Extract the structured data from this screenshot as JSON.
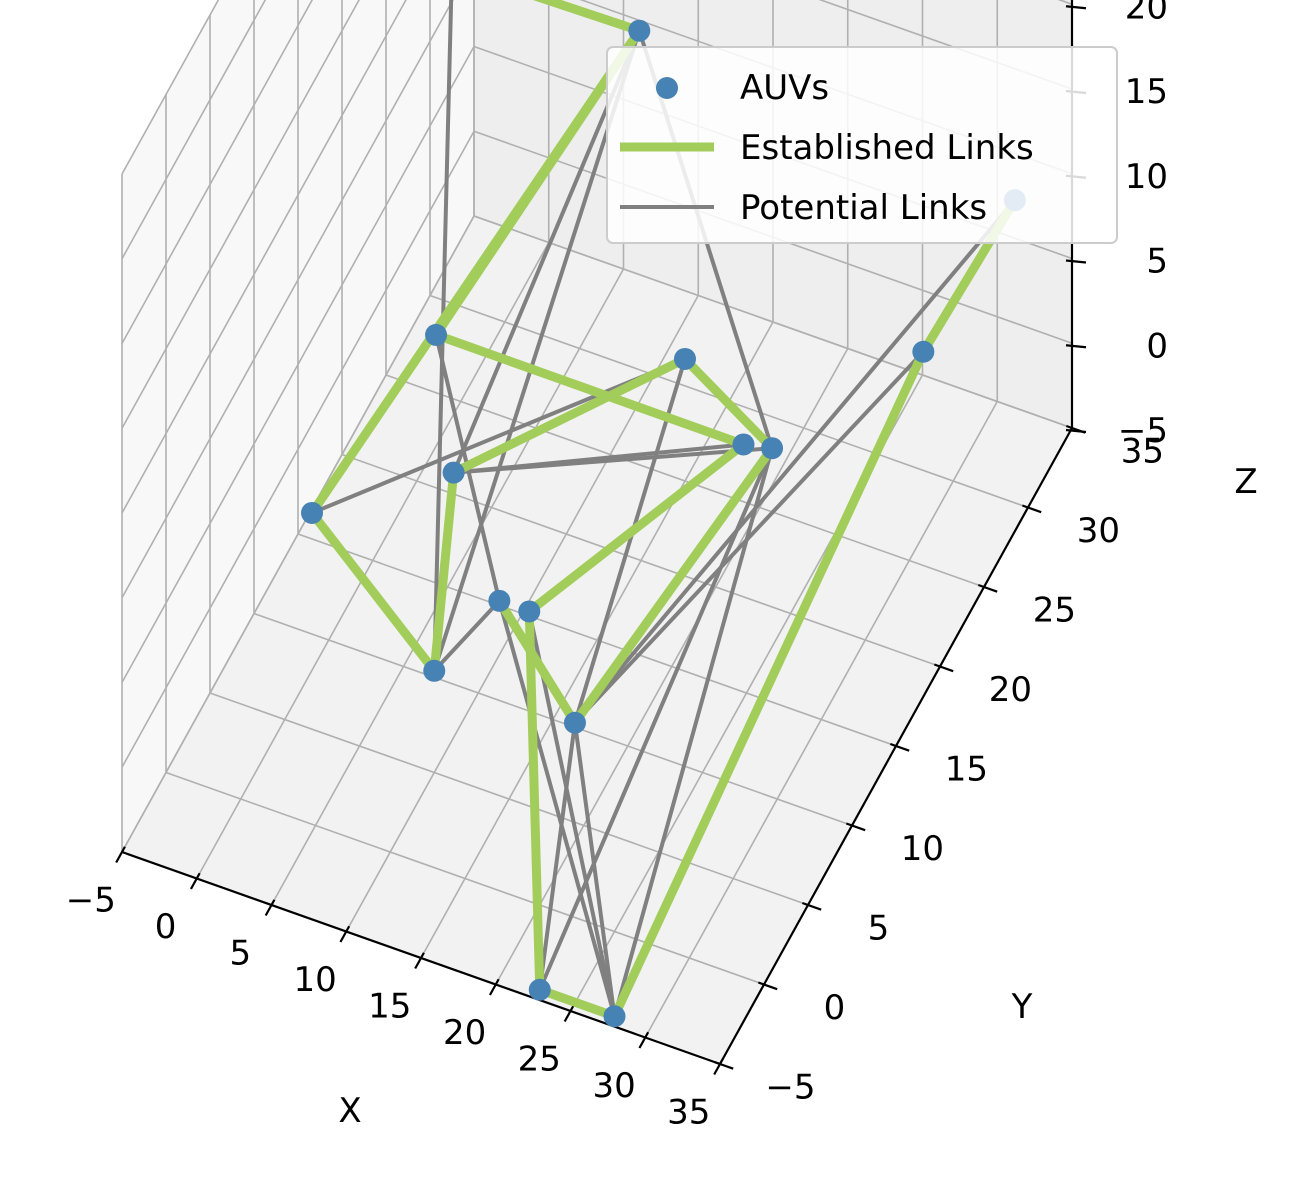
{
  "chart_data": {
    "type": "scatter",
    "projection": "3d",
    "xlabel": "X",
    "ylabel": "Y",
    "zlabel": "Z",
    "xlim": [
      -5,
      35
    ],
    "ylim": [
      -5,
      35
    ],
    "zlim": [
      -5,
      35
    ],
    "x_ticks": [
      -5,
      0,
      5,
      10,
      15,
      20,
      25,
      30,
      35
    ],
    "y_ticks": [
      -5,
      0,
      5,
      10,
      15,
      20,
      25,
      30,
      35
    ],
    "z_ticks": [
      -5,
      0,
      5,
      10,
      15,
      20,
      25,
      30,
      35
    ],
    "grid": true,
    "legend_position": "top-right",
    "legend": {
      "auvs": "AUVs",
      "established": "Established Links",
      "potential": "Potential Links"
    },
    "colors": {
      "auvs": "#4682b4",
      "established": "#a2cd5a",
      "potential": "#808080"
    },
    "auvs": [
      {
        "x": 0.0,
        "y": 24.0,
        "z": 21.5
      },
      {
        "x": 9.0,
        "y": 30.0,
        "z": 15.0
      },
      {
        "x": 6.0,
        "y": 12.0,
        "z": 13.0
      },
      {
        "x": 3.0,
        "y": 3.0,
        "z": 10.0
      },
      {
        "x": 10.0,
        "y": 5.0,
        "z": 1.0
      },
      {
        "x": 6.0,
        "y": 14.0,
        "z": 3.0
      },
      {
        "x": 15.0,
        "y": 25.0,
        "z": 2.2
      },
      {
        "x": 19.5,
        "y": 24.0,
        "z": -0.5
      },
      {
        "x": 22.0,
        "y": 23.0,
        "z": 1.0
      },
      {
        "x": 12.0,
        "y": 9.0,
        "z": 2.0
      },
      {
        "x": 14.0,
        "y": 9.0,
        "z": 2.0
      },
      {
        "x": 20.0,
        "y": 4.0,
        "z": 2.0
      },
      {
        "x": 20.0,
        "y": 0.0,
        "z": -10.0
      },
      {
        "x": 25.0,
        "y": 0.0,
        "z": -10.0
      },
      {
        "x": 28.0,
        "y": 30.0,
        "z": 2.0
      },
      {
        "x": 30.0,
        "y": 37.0,
        "z": 5.0
      }
    ],
    "established_links": [
      [
        0,
        1
      ],
      [
        1,
        2
      ],
      [
        1,
        3
      ],
      [
        3,
        4
      ],
      [
        4,
        5
      ],
      [
        5,
        6
      ],
      [
        6,
        8
      ],
      [
        2,
        7
      ],
      [
        7,
        10
      ],
      [
        10,
        12
      ],
      [
        12,
        13
      ],
      [
        13,
        14
      ],
      [
        14,
        15
      ],
      [
        9,
        11
      ],
      [
        11,
        8
      ]
    ],
    "potential_links": [
      [
        0,
        4
      ],
      [
        3,
        6
      ],
      [
        4,
        1
      ],
      [
        4,
        5
      ],
      [
        5,
        7
      ],
      [
        5,
        8
      ],
      [
        1,
        5
      ],
      [
        1,
        8
      ],
      [
        4,
        9
      ],
      [
        6,
        11
      ],
      [
        11,
        14
      ],
      [
        11,
        15
      ],
      [
        10,
        13
      ],
      [
        9,
        13
      ],
      [
        11,
        13
      ],
      [
        13,
        8
      ],
      [
        12,
        8
      ],
      [
        2,
        9
      ],
      [
        12,
        11
      ]
    ]
  }
}
